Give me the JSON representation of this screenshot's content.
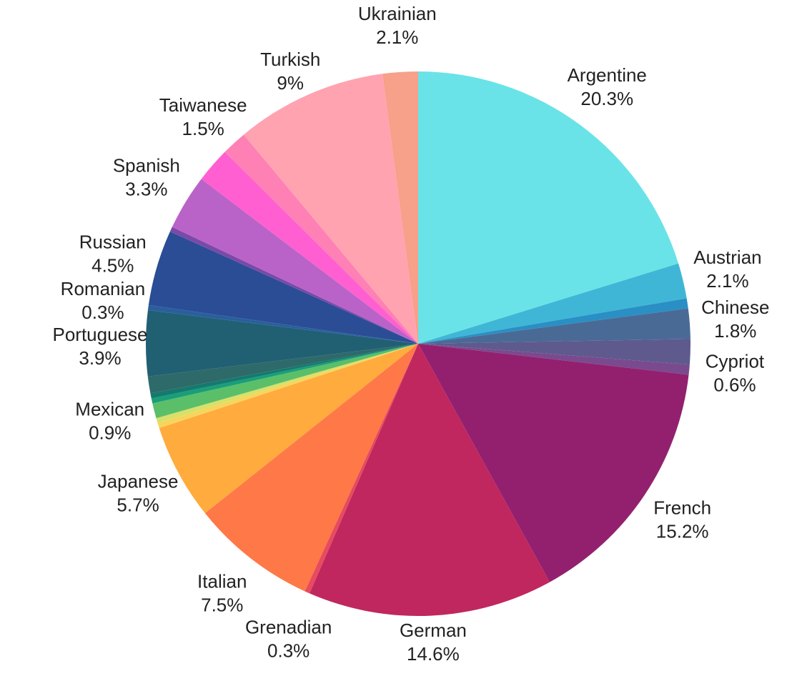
{
  "chart_data": {
    "type": "pie",
    "categories": [
      "Argentine",
      "Austrian",
      null,
      "Chinese",
      null,
      "Cypriot",
      "French",
      "German",
      "Grenadian",
      "Italian",
      "Japanese",
      null,
      null,
      "Mexican",
      null,
      null,
      null,
      "Portuguese",
      "Romanian",
      "Russian",
      null,
      "Spanish",
      null,
      "Taiwanese",
      "Turkish",
      "Ukrainian"
    ],
    "values": [
      20.3,
      2.1,
      0.6,
      1.8,
      1.5,
      0.6,
      15.2,
      14.6,
      0.3,
      7.5,
      5.7,
      0.3,
      0.3,
      0.9,
      0.3,
      0.3,
      1.0,
      3.9,
      0.3,
      4.5,
      0.3,
      3.3,
      2.1,
      1.5,
      9,
      2.1
    ],
    "value_labels": [
      "20.3%",
      "2.1%",
      null,
      "1.8%",
      null,
      "0.6%",
      "15.2%",
      "14.6%",
      "0.3%",
      "7.5%",
      "5.7%",
      null,
      null,
      "0.9%",
      null,
      null,
      null,
      "3.9%",
      "0.3%",
      "4.5%",
      null,
      "3.3%",
      null,
      "1.5%",
      "9%",
      "2.1%"
    ],
    "colors": [
      "#6ae3e8",
      "#40b6d6",
      "#2a8fc4",
      "#4a6a96",
      "#5e5a8e",
      "#7a4a8e",
      "#93206e",
      "#c0275e",
      "#e84a5f",
      "#ff7847",
      "#ffab3e",
      "#f6d55c",
      "#d9e06a",
      "#5bbf6a",
      "#1a9e7a",
      "#147a6e",
      "#2e6a6a",
      "#215f73",
      "#2a5f9e",
      "#2a4d96",
      "#7a4aa8",
      "#b963c8",
      "#ff5fd0",
      "#ff80b5",
      "#ffa3b1",
      "#f7a08a"
    ]
  }
}
